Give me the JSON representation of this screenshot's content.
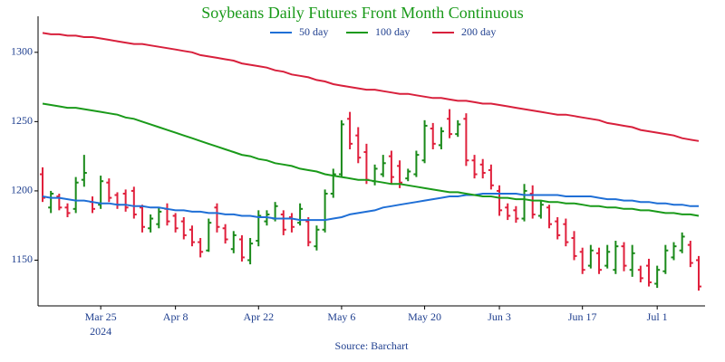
{
  "chart_data": {
    "type": "ohlc",
    "title": "Soybeans Daily Futures Front Month Continuous",
    "source": "Source: Barchart",
    "x_year": "2024",
    "x": [
      "2024-03-14",
      "2024-03-15",
      "2024-03-18",
      "2024-03-19",
      "2024-03-20",
      "2024-03-21",
      "2024-03-22",
      "2024-03-25",
      "2024-03-26",
      "2024-03-27",
      "2024-03-28",
      "2024-04-01",
      "2024-04-02",
      "2024-04-03",
      "2024-04-04",
      "2024-04-05",
      "2024-04-08",
      "2024-04-09",
      "2024-04-10",
      "2024-04-11",
      "2024-04-12",
      "2024-04-15",
      "2024-04-16",
      "2024-04-17",
      "2024-04-18",
      "2024-04-19",
      "2024-04-22",
      "2024-04-23",
      "2024-04-24",
      "2024-04-25",
      "2024-04-26",
      "2024-04-29",
      "2024-04-30",
      "2024-05-01",
      "2024-05-02",
      "2024-05-03",
      "2024-05-06",
      "2024-05-07",
      "2024-05-08",
      "2024-05-09",
      "2024-05-10",
      "2024-05-13",
      "2024-05-14",
      "2024-05-15",
      "2024-05-16",
      "2024-05-17",
      "2024-05-20",
      "2024-05-21",
      "2024-05-22",
      "2024-05-23",
      "2024-05-24",
      "2024-05-28",
      "2024-05-29",
      "2024-05-30",
      "2024-05-31",
      "2024-06-03",
      "2024-06-04",
      "2024-06-05",
      "2024-06-06",
      "2024-06-07",
      "2024-06-10",
      "2024-06-11",
      "2024-06-12",
      "2024-06-13",
      "2024-06-14",
      "2024-06-17",
      "2024-06-18",
      "2024-06-20",
      "2024-06-21",
      "2024-06-24",
      "2024-06-25",
      "2024-06-26",
      "2024-06-27",
      "2024-06-28",
      "2024-07-01",
      "2024-07-02",
      "2024-07-03",
      "2024-07-05",
      "2024-07-08",
      "2024-07-09"
    ],
    "open": [
      1212,
      1188,
      1196,
      1188,
      1187,
      1208,
      1192,
      1190,
      1206,
      1197,
      1198,
      1200,
      1188,
      1173,
      1176,
      1187,
      1182,
      1178,
      1172,
      1163,
      1157,
      1188,
      1173,
      1158,
      1165,
      1150,
      1164,
      1178,
      1180,
      1183,
      1181,
      1177,
      1178,
      1160,
      1172,
      1198,
      1212,
      1252,
      1240,
      1228,
      1207,
      1212,
      1225,
      1218,
      1209,
      1212,
      1222,
      1245,
      1233,
      1252,
      1241,
      1252,
      1222,
      1219,
      1215,
      1200,
      1188,
      1186,
      1180,
      1198,
      1182,
      1188,
      1178,
      1176,
      1166,
      1156,
      1146,
      1155,
      1146,
      1143,
      1160,
      1143,
      1143,
      1146,
      1133,
      1142,
      1152,
      1157,
      1161,
      1150
    ],
    "high": [
      1217,
      1200,
      1198,
      1191,
      1210,
      1226,
      1196,
      1211,
      1209,
      1199,
      1201,
      1203,
      1190,
      1183,
      1188,
      1191,
      1184,
      1181,
      1175,
      1166,
      1180,
      1191,
      1176,
      1171,
      1168,
      1166,
      1186,
      1186,
      1192,
      1186,
      1184,
      1191,
      1181,
      1175,
      1201,
      1216,
      1251,
      1257,
      1246,
      1234,
      1219,
      1226,
      1229,
      1222,
      1216,
      1229,
      1251,
      1249,
      1246,
      1259,
      1251,
      1256,
      1226,
      1223,
      1219,
      1204,
      1191,
      1189,
      1205,
      1204,
      1193,
      1190,
      1181,
      1180,
      1171,
      1159,
      1161,
      1159,
      1161,
      1164,
      1163,
      1161,
      1146,
      1151,
      1146,
      1161,
      1163,
      1170,
      1164,
      1153
    ],
    "low": [
      1192,
      1184,
      1186,
      1181,
      1184,
      1203,
      1184,
      1187,
      1192,
      1187,
      1185,
      1180,
      1170,
      1170,
      1173,
      1175,
      1170,
      1165,
      1160,
      1152,
      1156,
      1170,
      1162,
      1155,
      1149,
      1147,
      1160,
      1175,
      1178,
      1168,
      1170,
      1175,
      1160,
      1157,
      1170,
      1195,
      1210,
      1230,
      1220,
      1205,
      1204,
      1210,
      1205,
      1202,
      1207,
      1210,
      1220,
      1230,
      1230,
      1238,
      1239,
      1218,
      1209,
      1209,
      1201,
      1182,
      1179,
      1177,
      1178,
      1180,
      1180,
      1173,
      1165,
      1160,
      1150,
      1140,
      1144,
      1140,
      1144,
      1140,
      1142,
      1138,
      1134,
      1131,
      1130,
      1140,
      1150,
      1155,
      1145,
      1128
    ],
    "close": [
      1195,
      1198,
      1188,
      1184,
      1206,
      1213,
      1187,
      1207,
      1195,
      1190,
      1188,
      1183,
      1174,
      1180,
      1185,
      1178,
      1173,
      1168,
      1163,
      1156,
      1177,
      1174,
      1165,
      1168,
      1152,
      1162,
      1182,
      1183,
      1189,
      1172,
      1174,
      1187,
      1163,
      1172,
      1198,
      1212,
      1248,
      1234,
      1224,
      1208,
      1216,
      1220,
      1210,
      1206,
      1214,
      1226,
      1247,
      1234,
      1243,
      1241,
      1248,
      1222,
      1212,
      1213,
      1204,
      1186,
      1182,
      1180,
      1200,
      1183,
      1190,
      1176,
      1168,
      1163,
      1153,
      1143,
      1157,
      1143,
      1156,
      1160,
      1146,
      1155,
      1137,
      1134,
      1143,
      1157,
      1160,
      1167,
      1148,
      1131
    ],
    "up_color": "#1a8a1a",
    "down_color": "#e0203c",
    "series": [
      {
        "name": "50 day",
        "color": "#1f6fd6",
        "values": [
          1196,
          1195,
          1195,
          1194,
          1193,
          1193,
          1192,
          1191,
          1191,
          1190,
          1190,
          1189,
          1189,
          1188,
          1188,
          1187,
          1186,
          1186,
          1185,
          1185,
          1184,
          1184,
          1183,
          1183,
          1182,
          1182,
          1181,
          1181,
          1180,
          1180,
          1180,
          1179,
          1179,
          1179,
          1179,
          1180,
          1181,
          1183,
          1184,
          1185,
          1186,
          1188,
          1189,
          1190,
          1191,
          1192,
          1193,
          1194,
          1195,
          1196,
          1196,
          1197,
          1197,
          1198,
          1198,
          1198,
          1198,
          1198,
          1197,
          1197,
          1197,
          1197,
          1197,
          1196,
          1196,
          1196,
          1196,
          1195,
          1194,
          1194,
          1193,
          1193,
          1192,
          1192,
          1191,
          1191,
          1190,
          1190,
          1189,
          1189
        ]
      },
      {
        "name": "100 day",
        "color": "#1a9a1a",
        "values": [
          1263,
          1262,
          1261,
          1260,
          1260,
          1259,
          1258,
          1257,
          1256,
          1255,
          1253,
          1252,
          1250,
          1248,
          1246,
          1244,
          1242,
          1240,
          1238,
          1236,
          1234,
          1232,
          1230,
          1228,
          1226,
          1225,
          1223,
          1222,
          1220,
          1219,
          1218,
          1216,
          1215,
          1214,
          1212,
          1211,
          1210,
          1209,
          1208,
          1208,
          1207,
          1206,
          1205,
          1205,
          1204,
          1203,
          1202,
          1201,
          1200,
          1199,
          1199,
          1198,
          1197,
          1196,
          1196,
          1195,
          1195,
          1194,
          1194,
          1193,
          1193,
          1192,
          1192,
          1191,
          1191,
          1190,
          1189,
          1189,
          1188,
          1188,
          1187,
          1187,
          1186,
          1186,
          1185,
          1184,
          1184,
          1183,
          1183,
          1182
        ]
      },
      {
        "name": "200 day",
        "color": "#d8203c",
        "values": [
          1314,
          1313,
          1313,
          1312,
          1312,
          1311,
          1311,
          1310,
          1309,
          1308,
          1307,
          1306,
          1306,
          1305,
          1304,
          1303,
          1302,
          1301,
          1300,
          1298,
          1297,
          1296,
          1295,
          1294,
          1292,
          1291,
          1290,
          1289,
          1287,
          1286,
          1284,
          1283,
          1282,
          1280,
          1279,
          1277,
          1276,
          1275,
          1274,
          1273,
          1273,
          1272,
          1271,
          1270,
          1270,
          1269,
          1268,
          1267,
          1267,
          1266,
          1265,
          1265,
          1264,
          1263,
          1263,
          1262,
          1261,
          1260,
          1259,
          1258,
          1257,
          1256,
          1255,
          1255,
          1254,
          1253,
          1252,
          1251,
          1249,
          1248,
          1247,
          1246,
          1244,
          1243,
          1242,
          1241,
          1240,
          1238,
          1237,
          1236
        ]
      }
    ],
    "ylim": [
      1117,
      1326
    ],
    "yticks": [
      1150,
      1200,
      1250,
      1300
    ],
    "xticks": [
      {
        "value": "2024-03-25",
        "label": "Mar 25"
      },
      {
        "value": "2024-04-08",
        "label": "Apr 8"
      },
      {
        "value": "2024-04-22",
        "label": "Apr 22"
      },
      {
        "value": "2024-05-06",
        "label": "May 6"
      },
      {
        "value": "2024-05-20",
        "label": "May 20"
      },
      {
        "value": "2024-06-03",
        "label": "Jun 3"
      },
      {
        "value": "2024-06-17",
        "label": "Jun 17"
      },
      {
        "value": "2024-07-01",
        "label": "Jul 1"
      }
    ]
  }
}
